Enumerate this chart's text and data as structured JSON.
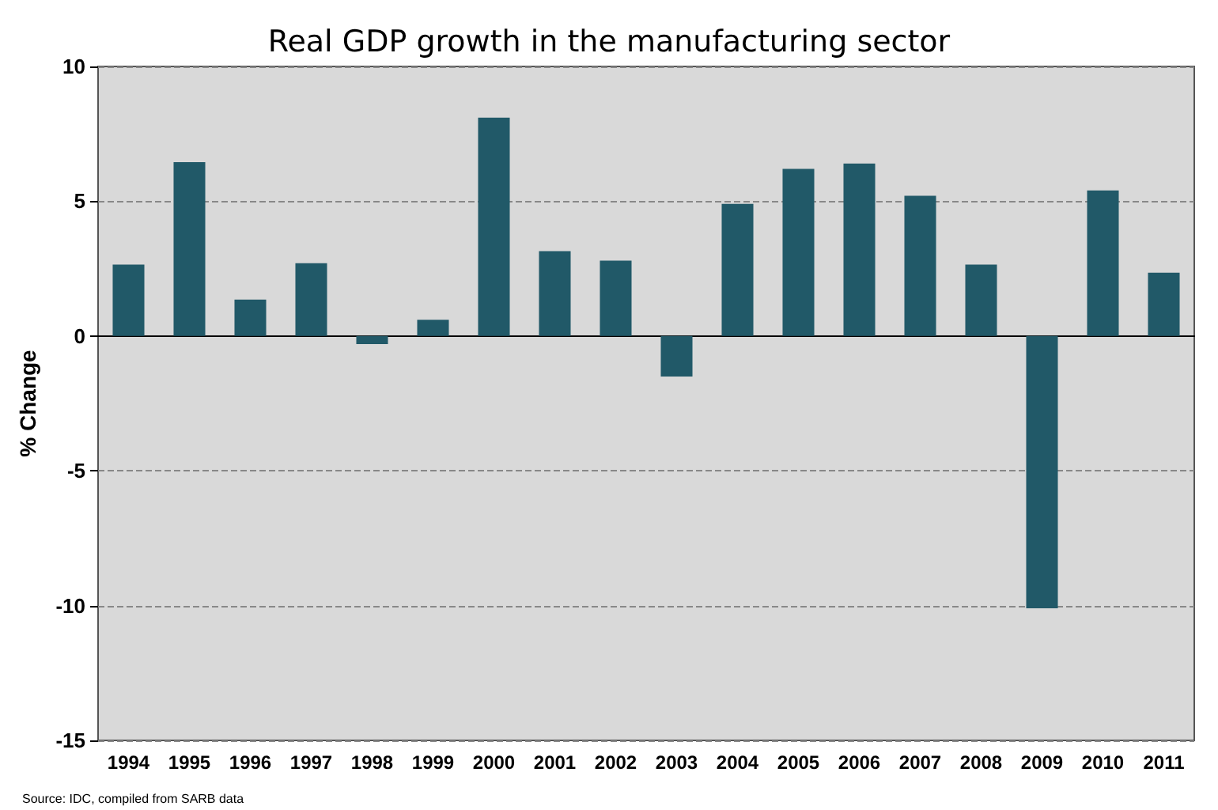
{
  "chart_data": {
    "type": "bar",
    "title": "Real GDP growth in the manufacturing sector",
    "ylabel": "% Change",
    "categories": [
      "1994",
      "1995",
      "1996",
      "1997",
      "1998",
      "1999",
      "2000",
      "2001",
      "2002",
      "2003",
      "2004",
      "2005",
      "2006",
      "2007",
      "2008",
      "2009",
      "2010",
      "2011"
    ],
    "values": [
      2.65,
      6.45,
      1.35,
      2.7,
      -0.3,
      0.6,
      8.1,
      3.15,
      2.8,
      -1.5,
      4.9,
      6.2,
      6.4,
      5.2,
      2.65,
      -10.1,
      5.4,
      2.35
    ],
    "color": "#215968",
    "ylim": [
      -15,
      10
    ],
    "yticks": [
      -15,
      -10,
      -5,
      0,
      5,
      10
    ],
    "grid": "y",
    "annotations": [
      "Source: IDC, compiled from SARB data"
    ]
  }
}
